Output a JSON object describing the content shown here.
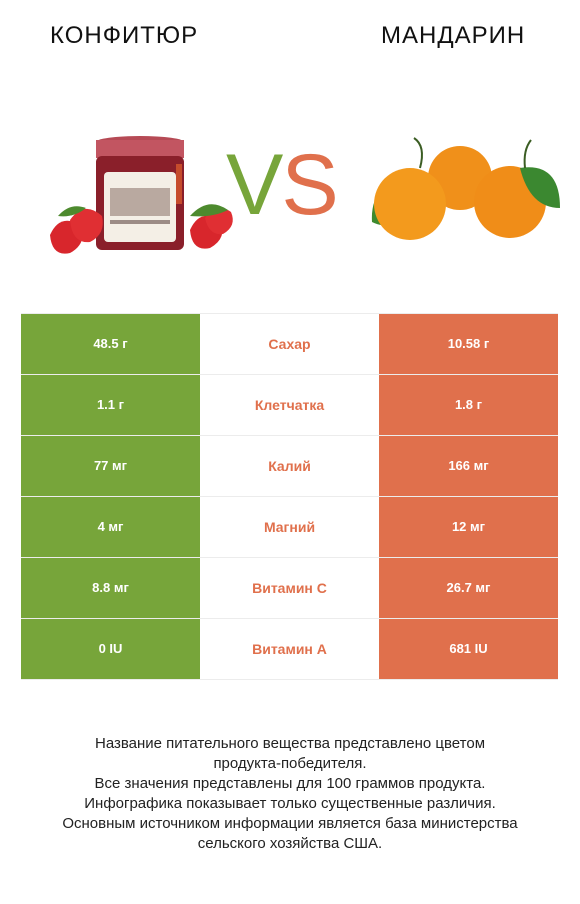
{
  "header": {
    "left_title": "КОНФИТЮР",
    "right_title": "МАНДАРИН",
    "vs_v": "V",
    "vs_s": "S"
  },
  "colors": {
    "left": "#77a53a",
    "right": "#e0704c"
  },
  "images": {
    "left": "jam-jar-with-strawberries",
    "right": "tangerines-with-leaves"
  },
  "rows": [
    {
      "left": "48.5 г",
      "label": "Сахар",
      "right": "10.58 г",
      "winner": "right"
    },
    {
      "left": "1.1 г",
      "label": "Клетчатка",
      "right": "1.8 г",
      "winner": "right"
    },
    {
      "left": "77 мг",
      "label": "Калий",
      "right": "166 мг",
      "winner": "right"
    },
    {
      "left": "4 мг",
      "label": "Магний",
      "right": "12 мг",
      "winner": "right"
    },
    {
      "left": "8.8 мг",
      "label": "Витамин C",
      "right": "26.7 мг",
      "winner": "right"
    },
    {
      "left": "0 IU",
      "label": "Витамин A",
      "right": "681 IU",
      "winner": "right"
    }
  ],
  "footnote": [
    "Название питательного вещества представлено цветом",
    "продукта-победителя.",
    "Все значения представлены для 100 граммов продукта.",
    "Инфографика показывает только существенные различия.",
    "Основным источником информации является база министерства",
    "сельского хозяйства США."
  ]
}
